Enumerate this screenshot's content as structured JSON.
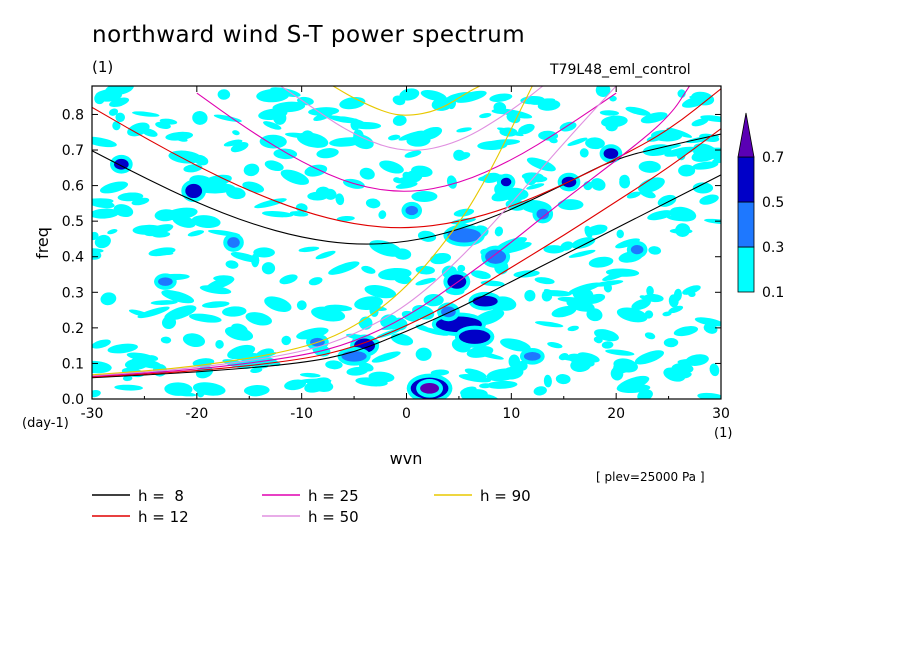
{
  "header": {
    "title": "northward wind S-T power spectrum",
    "unit_top": "(1)",
    "experiment": "T79L48_eml_control"
  },
  "axes": {
    "xlabel": "wvn",
    "ylabel": "freq",
    "x_unit": "(1)",
    "y_unit": "(day-1)",
    "plev_note": "[ plev=25000 Pa ]"
  },
  "colorbar": {
    "ticks": [
      "0.1",
      "0.3",
      "0.5",
      "0.7"
    ],
    "colors": [
      "#00ffff",
      "#1e78ff",
      "#0000c8",
      "#5a00b4"
    ]
  },
  "chart_data": {
    "type": "heatmap",
    "title": "northward wind S-T power spectrum",
    "xlabel": "wvn",
    "ylabel": "freq",
    "xlim": [
      -30,
      30
    ],
    "ylim": [
      0,
      0.88
    ],
    "x_ticks": [
      "-30",
      "-20",
      "-10",
      "0",
      "10",
      "20",
      "30"
    ],
    "y_ticks": [
      "0.0",
      "0.1",
      "0.2",
      "0.3",
      "0.4",
      "0.5",
      "0.6",
      "0.7",
      "0.8"
    ],
    "contour_levels": [
      0.1,
      0.3,
      0.5,
      0.7
    ],
    "level_colors": [
      "#00ffff",
      "#1e78ff",
      "#0000c8",
      "#5a00b4"
    ],
    "blobs": [
      {
        "x": 2.2,
        "y": 0.03,
        "rx": 1.8,
        "ry": 0.03,
        "level": 3
      },
      {
        "x": 2.2,
        "y": 0.03,
        "rx": 0.9,
        "ry": 0.015,
        "level": 4
      },
      {
        "x": 5.0,
        "y": 0.21,
        "rx": 2.2,
        "ry": 0.022,
        "level": 3
      },
      {
        "x": 6.5,
        "y": 0.175,
        "rx": 1.5,
        "ry": 0.02,
        "level": 3
      },
      {
        "x": -4.0,
        "y": 0.15,
        "rx": 1.0,
        "ry": 0.02,
        "level": 3
      },
      {
        "x": 4.8,
        "y": 0.33,
        "rx": 0.9,
        "ry": 0.02,
        "level": 3
      },
      {
        "x": 7.5,
        "y": 0.275,
        "rx": 1.2,
        "ry": 0.015,
        "level": 3
      },
      {
        "x": -20.3,
        "y": 0.585,
        "rx": 0.8,
        "ry": 0.02,
        "level": 3
      },
      {
        "x": 15.5,
        "y": 0.61,
        "rx": 0.7,
        "ry": 0.015,
        "level": 3
      },
      {
        "x": 19.5,
        "y": 0.69,
        "rx": 0.7,
        "ry": 0.015,
        "level": 3
      },
      {
        "x": -27.2,
        "y": 0.66,
        "rx": 0.7,
        "ry": 0.015,
        "level": 3
      },
      {
        "x": 9.5,
        "y": 0.61,
        "rx": 0.5,
        "ry": 0.012,
        "level": 3
      },
      {
        "x": 5.5,
        "y": 0.46,
        "rx": 1.6,
        "ry": 0.02,
        "level": 2
      },
      {
        "x": 8.5,
        "y": 0.4,
        "rx": 1.0,
        "ry": 0.02,
        "level": 2
      },
      {
        "x": -5.0,
        "y": 0.12,
        "rx": 1.2,
        "ry": 0.015,
        "level": 2
      },
      {
        "x": 12.0,
        "y": 0.12,
        "rx": 0.8,
        "ry": 0.012,
        "level": 2
      },
      {
        "x": -16.5,
        "y": 0.44,
        "rx": 0.6,
        "ry": 0.015,
        "level": 2
      },
      {
        "x": 0.5,
        "y": 0.53,
        "rx": 0.6,
        "ry": 0.013,
        "level": 2
      },
      {
        "x": 13.0,
        "y": 0.52,
        "rx": 0.6,
        "ry": 0.015,
        "level": 2
      },
      {
        "x": 4.0,
        "y": 0.245,
        "rx": 0.7,
        "ry": 0.015,
        "level": 2
      },
      {
        "x": -8.5,
        "y": 0.16,
        "rx": 0.7,
        "ry": 0.012,
        "level": 2
      },
      {
        "x": 22.0,
        "y": 0.42,
        "rx": 0.6,
        "ry": 0.013,
        "level": 2
      },
      {
        "x": -23.0,
        "y": 0.33,
        "rx": 0.7,
        "ry": 0.012,
        "level": 2
      }
    ],
    "series": [
      {
        "name": "h =  8",
        "color": "#000000",
        "h": 8,
        "sym": [
          [
            -30,
            0.698
          ],
          [
            -25,
            0.622
          ],
          [
            -20,
            0.552
          ],
          [
            -15,
            0.494
          ],
          [
            -10,
            0.453
          ],
          [
            -5,
            0.433
          ],
          [
            0,
            0.44
          ],
          [
            5,
            0.475
          ],
          [
            10,
            0.532
          ],
          [
            15,
            0.603
          ],
          [
            20,
            0.677
          ],
          [
            25,
            0.712
          ],
          [
            30,
            0.745
          ]
        ],
        "kelvin": [
          [
            -30,
            0.06
          ],
          [
            -20,
            0.075
          ],
          [
            -10,
            0.1
          ],
          [
            -5,
            0.13
          ],
          [
            0,
            0.19
          ],
          [
            5,
            0.255
          ],
          [
            10,
            0.33
          ],
          [
            15,
            0.405
          ],
          [
            20,
            0.48
          ],
          [
            25,
            0.555
          ],
          [
            30,
            0.63
          ]
        ]
      },
      {
        "name": "h = 12",
        "color": "#e00000",
        "h": 12,
        "sym": [
          [
            -30,
            0.82
          ],
          [
            -25,
            0.735
          ],
          [
            -20,
            0.655
          ],
          [
            -15,
            0.585
          ],
          [
            -10,
            0.528
          ],
          [
            -5,
            0.49
          ],
          [
            0,
            0.478
          ],
          [
            5,
            0.497
          ],
          [
            10,
            0.54
          ],
          [
            15,
            0.603
          ],
          [
            20,
            0.675
          ],
          [
            25,
            0.755
          ],
          [
            30,
            0.872
          ]
        ],
        "kelvin": [
          [
            -30,
            0.062
          ],
          [
            -20,
            0.078
          ],
          [
            -10,
            0.11
          ],
          [
            -5,
            0.145
          ],
          [
            0,
            0.205
          ],
          [
            5,
            0.28
          ],
          [
            10,
            0.37
          ],
          [
            15,
            0.46
          ],
          [
            20,
            0.555
          ],
          [
            25,
            0.65
          ],
          [
            30,
            0.76
          ]
        ]
      },
      {
        "name": "h = 25",
        "color": "#e000b0",
        "h": 25,
        "sym": [
          [
            -20,
            0.86
          ],
          [
            -15,
            0.755
          ],
          [
            -10,
            0.665
          ],
          [
            -5,
            0.6
          ],
          [
            0,
            0.578
          ],
          [
            5,
            0.605
          ],
          [
            10,
            0.67
          ],
          [
            15,
            0.76
          ],
          [
            20,
            0.86
          ]
        ],
        "kelvin": [
          [
            -30,
            0.064
          ],
          [
            -20,
            0.082
          ],
          [
            -10,
            0.12
          ],
          [
            -5,
            0.16
          ],
          [
            0,
            0.23
          ],
          [
            5,
            0.33
          ],
          [
            10,
            0.44
          ],
          [
            15,
            0.56
          ],
          [
            20,
            0.67
          ],
          [
            25,
            0.79
          ],
          [
            27,
            0.88
          ]
        ]
      },
      {
        "name": "h = 50",
        "color": "#e090e0",
        "h": 50,
        "sym": [
          [
            -12,
            0.88
          ],
          [
            -10,
            0.84
          ],
          [
            -5,
            0.74
          ],
          [
            0,
            0.69
          ],
          [
            5,
            0.72
          ],
          [
            10,
            0.81
          ],
          [
            13,
            0.88
          ]
        ],
        "kelvin": [
          [
            -30,
            0.066
          ],
          [
            -20,
            0.086
          ],
          [
            -10,
            0.13
          ],
          [
            -5,
            0.18
          ],
          [
            0,
            0.26
          ],
          [
            5,
            0.39
          ],
          [
            10,
            0.55
          ],
          [
            15,
            0.72
          ],
          [
            20,
            0.88
          ]
        ]
      },
      {
        "name": "h = 90",
        "color": "#e8c800",
        "h": 90,
        "sym": [
          [
            -7,
            0.88
          ],
          [
            -5,
            0.845
          ],
          [
            -2,
            0.805
          ],
          [
            0,
            0.795
          ],
          [
            3,
            0.81
          ],
          [
            6,
            0.865
          ],
          [
            7,
            0.88
          ]
        ],
        "kelvin": [
          [
            -30,
            0.068
          ],
          [
            -20,
            0.09
          ],
          [
            -10,
            0.14
          ],
          [
            -5,
            0.2
          ],
          [
            0,
            0.31
          ],
          [
            5,
            0.49
          ],
          [
            8,
            0.64
          ],
          [
            11,
            0.82
          ],
          [
            12,
            0.88
          ]
        ]
      }
    ]
  }
}
